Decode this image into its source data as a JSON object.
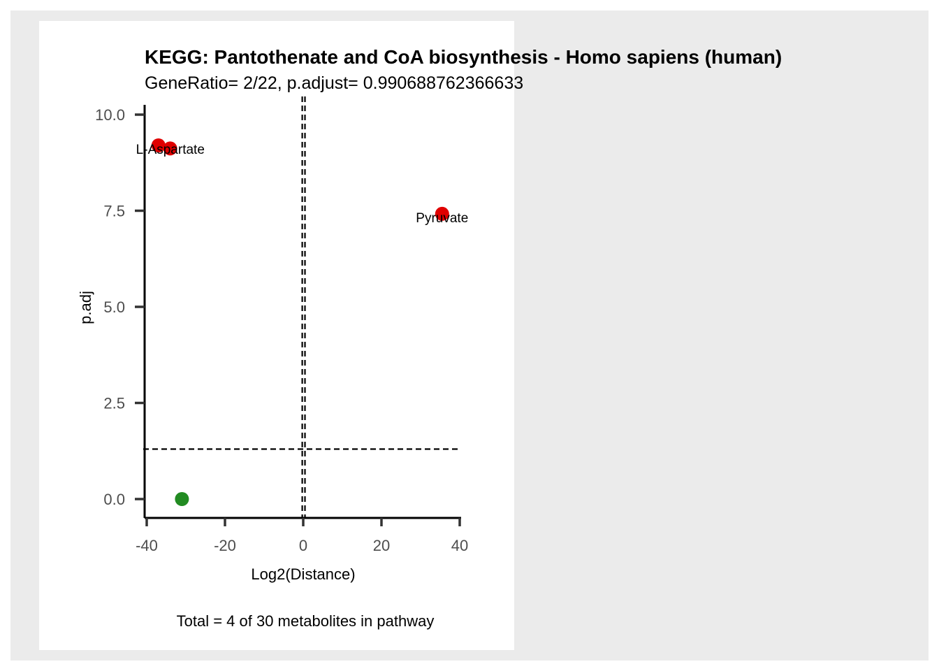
{
  "chart_data": {
    "type": "scatter",
    "title": "KEGG: Pantothenate and CoA biosynthesis - Homo sapiens (human)",
    "subtitle": "GeneRatio= 2/22, p.adjust= 0.990688762366633",
    "xlabel": "Log2(Distance)",
    "ylabel": "p.adj",
    "caption": "Total = 4 of 30 metabolites in pathway",
    "xlim": [
      -40,
      40
    ],
    "ylim": [
      0,
      10
    ],
    "x_ticks": [
      -40,
      -20,
      0,
      20,
      40
    ],
    "y_ticks": [
      0,
      2.5,
      5,
      7.5,
      10
    ],
    "x_tick_labels": [
      "-40",
      "-20",
      "0",
      "20",
      "40"
    ],
    "y_tick_labels": [
      "0.0",
      "2.5",
      "5.0",
      "7.5",
      "10.0"
    ],
    "points": [
      {
        "x": -37,
        "y": 9.2,
        "color": "#e00000",
        "label": "L-Aspartate"
      },
      {
        "x": -34,
        "y": 9.12,
        "color": "#e00000",
        "label": ""
      },
      {
        "x": 35.5,
        "y": 7.42,
        "color": "#e00000",
        "label": "Pyruvate"
      },
      {
        "x": -31,
        "y": 0.0,
        "color": "#228b22",
        "label": ""
      }
    ],
    "vlines": [
      -0.25,
      0.45
    ],
    "hline": 1.3,
    "colors": {
      "up": "#e00000",
      "down": "#228b22"
    }
  }
}
